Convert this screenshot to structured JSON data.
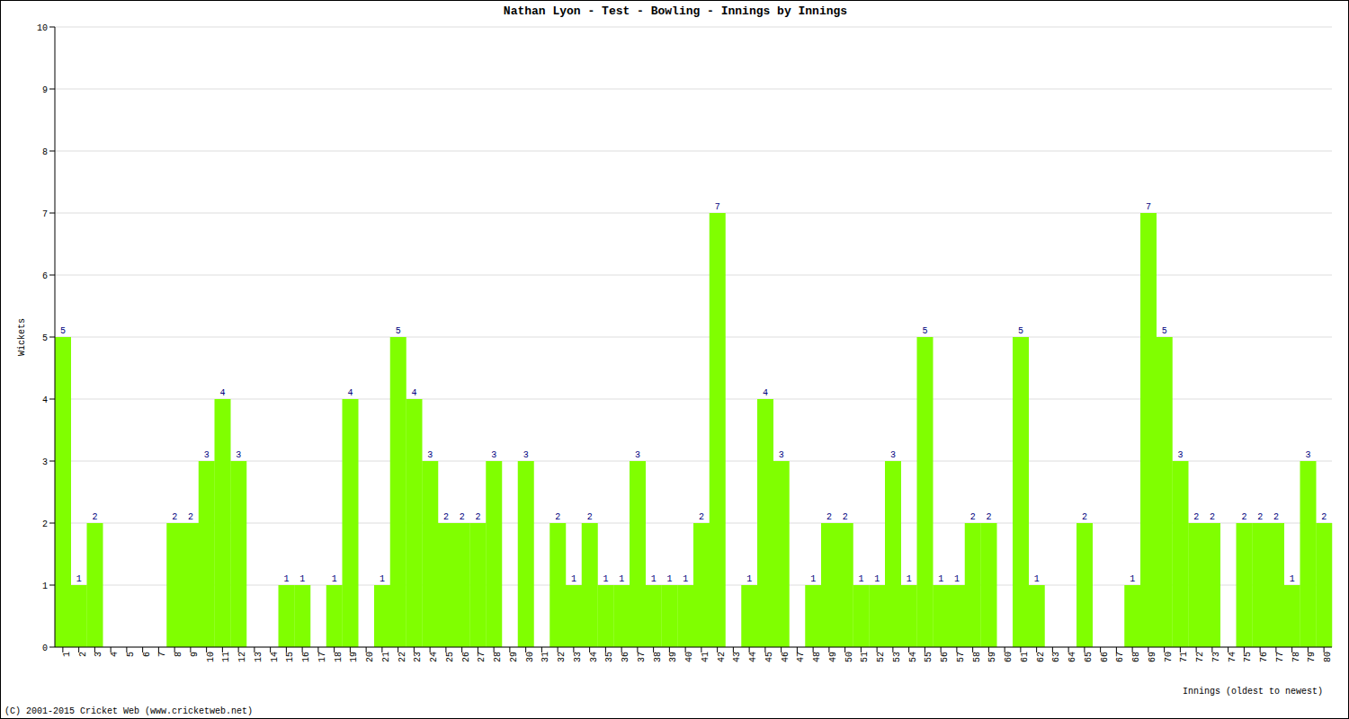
{
  "chart_data": {
    "type": "bar",
    "title": "Nathan Lyon - Test - Bowling - Innings by Innings",
    "x_label": "Innings (oldest to newest)",
    "y_label": "Wickets",
    "annotations": [
      "(C) 2001-2015 Cricket Web (www.cricketweb.net)"
    ],
    "categories": [
      "1",
      "2",
      "3",
      "4",
      "5",
      "6",
      "7",
      "8",
      "9",
      "10",
      "11",
      "12",
      "13",
      "14",
      "15",
      "16",
      "17",
      "18",
      "19",
      "20",
      "21",
      "22",
      "23",
      "24",
      "25",
      "26",
      "27",
      "28",
      "29",
      "30",
      "31",
      "32",
      "33",
      "34",
      "35",
      "36",
      "37",
      "38",
      "39",
      "40",
      "41",
      "42",
      "43",
      "44",
      "45",
      "46",
      "47",
      "48",
      "49",
      "50",
      "51",
      "52",
      "53",
      "54",
      "55",
      "56",
      "57",
      "58",
      "59",
      "60",
      "61",
      "62",
      "63",
      "64",
      "65",
      "66",
      "67",
      "68",
      "69",
      "70",
      "71",
      "72",
      "73",
      "74",
      "75",
      "76",
      "77",
      "78",
      "79",
      "80"
    ],
    "values": [
      5,
      1,
      2,
      0,
      0,
      0,
      0,
      2,
      2,
      3,
      4,
      3,
      0,
      0,
      1,
      1,
      0,
      1,
      4,
      0,
      1,
      5,
      4,
      3,
      2,
      2,
      2,
      3,
      0,
      3,
      0,
      2,
      1,
      2,
      1,
      1,
      3,
      1,
      1,
      1,
      2,
      7,
      0,
      1,
      4,
      3,
      0,
      1,
      2,
      2,
      1,
      1,
      3,
      1,
      5,
      1,
      1,
      2,
      2,
      0,
      5,
      1,
      0,
      0,
      2,
      0,
      0,
      1,
      7,
      5,
      3,
      2,
      2,
      0,
      2,
      2,
      2,
      1,
      3,
      2
    ],
    "color": "#80ff00",
    "ylim": [
      0,
      10
    ],
    "yticks": [
      0,
      1,
      2,
      3,
      4,
      5,
      6,
      7,
      8,
      9,
      10
    ],
    "grid": true,
    "data_labels": true
  }
}
